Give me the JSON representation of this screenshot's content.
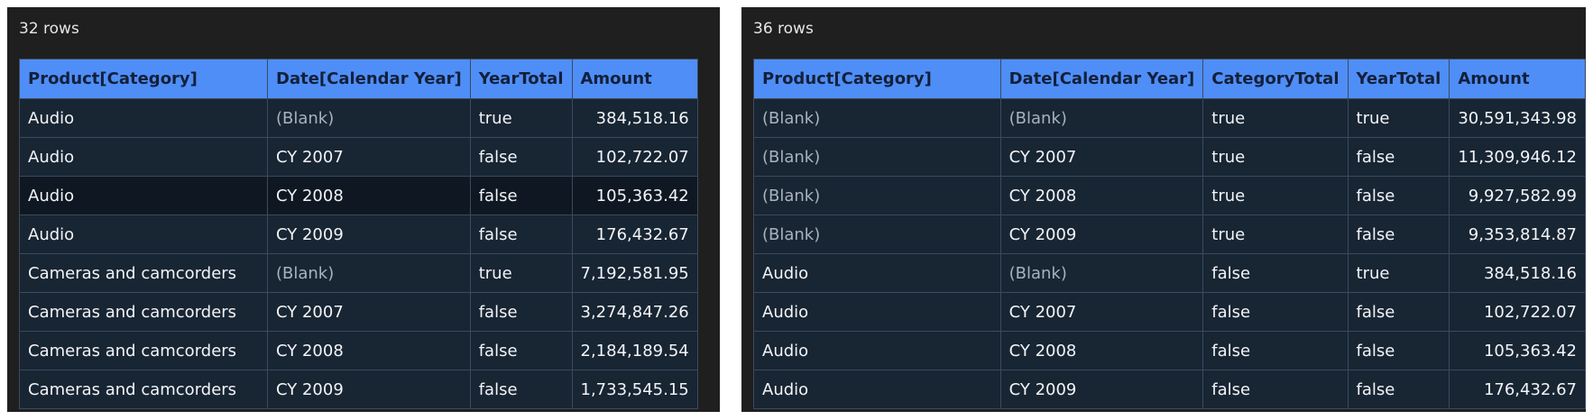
{
  "left": {
    "row_count": "32 rows",
    "columns": [
      "Product[Category]",
      "Date[Calendar Year]",
      "YearTotal",
      "Amount"
    ],
    "rows": [
      {
        "c0": "Audio",
        "c1": "(Blank)",
        "c2": "true",
        "c3": "384,518.16"
      },
      {
        "c0": "Audio",
        "c1": "CY 2007",
        "c2": "false",
        "c3": "102,722.07"
      },
      {
        "c0": "Audio",
        "c1": "CY 2008",
        "c2": "false",
        "c3": "105,363.42"
      },
      {
        "c0": "Audio",
        "c1": "CY 2009",
        "c2": "false",
        "c3": "176,432.67"
      },
      {
        "c0": "Cameras and camcorders",
        "c1": "(Blank)",
        "c2": "true",
        "c3": "7,192,581.95"
      },
      {
        "c0": "Cameras and camcorders",
        "c1": "CY 2007",
        "c2": "false",
        "c3": "3,274,847.26"
      },
      {
        "c0": "Cameras and camcorders",
        "c1": "CY 2008",
        "c2": "false",
        "c3": "2,184,189.54"
      },
      {
        "c0": "Cameras and camcorders",
        "c1": "CY 2009",
        "c2": "false",
        "c3": "1,733,545.15"
      }
    ]
  },
  "right": {
    "row_count": "36 rows",
    "columns": [
      "Product[Category]",
      "Date[Calendar Year]",
      "CategoryTotal",
      "YearTotal",
      "Amount"
    ],
    "rows": [
      {
        "c0": "(Blank)",
        "c1": "(Blank)",
        "c2": "true",
        "c3": "true",
        "c4": "30,591,343.98"
      },
      {
        "c0": "(Blank)",
        "c1": "CY 2007",
        "c2": "true",
        "c3": "false",
        "c4": "11,309,946.12"
      },
      {
        "c0": "(Blank)",
        "c1": "CY 2008",
        "c2": "true",
        "c3": "false",
        "c4": "9,927,582.99"
      },
      {
        "c0": "(Blank)",
        "c1": "CY 2009",
        "c2": "true",
        "c3": "false",
        "c4": "9,353,814.87"
      },
      {
        "c0": "Audio",
        "c1": "(Blank)",
        "c2": "false",
        "c3": "true",
        "c4": "384,518.16"
      },
      {
        "c0": "Audio",
        "c1": "CY 2007",
        "c2": "false",
        "c3": "false",
        "c4": "102,722.07"
      },
      {
        "c0": "Audio",
        "c1": "CY 2008",
        "c2": "false",
        "c3": "false",
        "c4": "105,363.42"
      },
      {
        "c0": "Audio",
        "c1": "CY 2009",
        "c2": "false",
        "c3": "false",
        "c4": "176,432.67"
      }
    ]
  },
  "colors": {
    "panel_bg": "#1f1f1f",
    "header_bg": "#4f8ef7",
    "row_bg": "#182533",
    "hovered_row_bg": "#0f1822",
    "blank_text": "#a9b2bd"
  }
}
